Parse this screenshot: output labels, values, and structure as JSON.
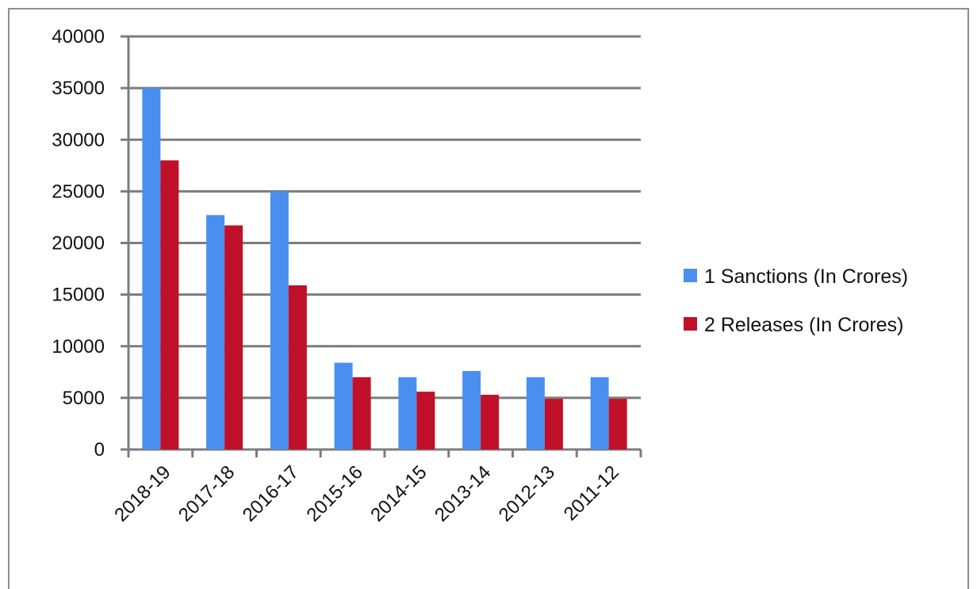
{
  "chart_data": {
    "type": "bar",
    "categories": [
      "2018-19",
      "2017-18",
      "2016-17",
      "2015-16",
      "2014-15",
      "2013-14",
      "2012-13",
      "2011-12"
    ],
    "series": [
      {
        "name": "1 Sanctions (In Crores)",
        "color": "#4a8ff0",
        "values": [
          35000,
          22700,
          25000,
          8400,
          7000,
          7600,
          7000,
          7000
        ]
      },
      {
        "name": "2 Releases (In Crores)",
        "color": "#c0102a",
        "values": [
          28000,
          21700,
          15900,
          7000,
          5600,
          5300,
          4900,
          4900
        ]
      }
    ],
    "ylim": [
      0,
      40000
    ],
    "yticks": [
      0,
      5000,
      10000,
      15000,
      20000,
      25000,
      30000,
      35000,
      40000
    ],
    "grid": true,
    "legend_position": "right",
    "xlabel": "",
    "ylabel": "",
    "title": ""
  }
}
